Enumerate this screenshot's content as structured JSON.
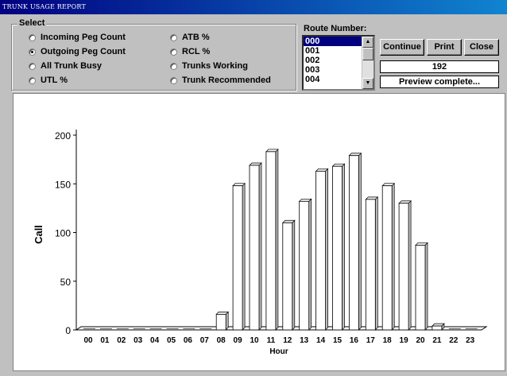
{
  "window": {
    "title": "TRUNK USAGE REPORT"
  },
  "select": {
    "label": "Select",
    "options": [
      {
        "label": "Incoming Peg Count",
        "selected": false
      },
      {
        "label": "Outgoing Peg Count",
        "selected": true
      },
      {
        "label": "All Trunk Busy",
        "selected": false
      },
      {
        "label": "UTL %",
        "selected": false
      },
      {
        "label": "ATB %",
        "selected": false
      },
      {
        "label": "RCL %",
        "selected": false
      },
      {
        "label": "Trunks Working",
        "selected": false
      },
      {
        "label": "Trunk Recommended",
        "selected": false
      }
    ]
  },
  "route": {
    "label": "Route Number:",
    "items": [
      "000",
      "001",
      "002",
      "003",
      "004"
    ],
    "selected": "000"
  },
  "buttons": {
    "continue": "Continue",
    "print": "Print",
    "close": "Close"
  },
  "count_value": "192",
  "status": "Preview complete...",
  "chart_data": {
    "type": "bar",
    "xlabel": "Hour",
    "ylabel": "Call",
    "ylim": [
      0,
      200
    ],
    "yticks": [
      0,
      50,
      100,
      150,
      200
    ],
    "categories": [
      "00",
      "01",
      "02",
      "03",
      "04",
      "05",
      "06",
      "07",
      "08",
      "09",
      "10",
      "11",
      "12",
      "13",
      "14",
      "15",
      "16",
      "17",
      "18",
      "19",
      "20",
      "21",
      "22",
      "23"
    ],
    "values": [
      0,
      0,
      0,
      0,
      0,
      0,
      0,
      0,
      16,
      148,
      169,
      183,
      110,
      132,
      163,
      168,
      179,
      134,
      148,
      130,
      87,
      4,
      0,
      0
    ],
    "style": "3d",
    "grid": false,
    "legend": false
  }
}
